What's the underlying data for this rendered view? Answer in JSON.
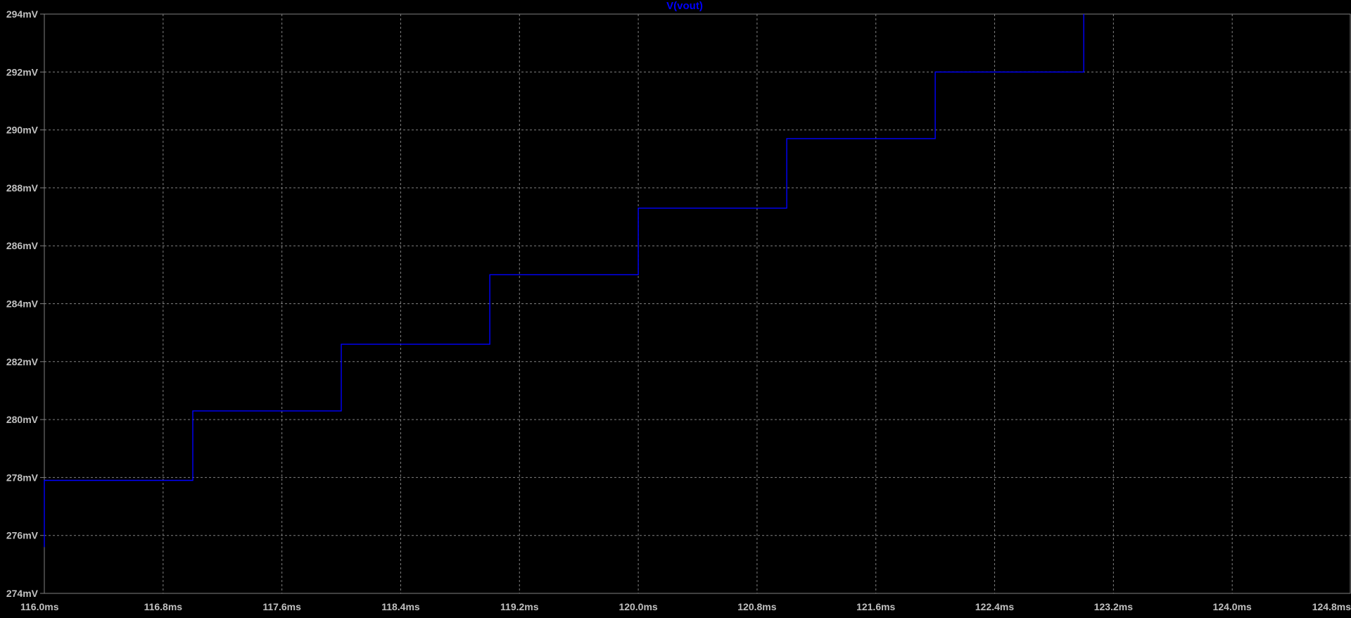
{
  "title": "V(vout)",
  "colors": {
    "background": "#000000",
    "trace": "#0000FF",
    "title": "#0000FF",
    "axis": "#808080",
    "grid": "#808080",
    "tick_label": "#C0C0C0"
  },
  "chart_data": {
    "type": "line",
    "title": "V(vout)",
    "xlabel": "",
    "ylabel": "",
    "xlim": [
      116.0,
      124.8
    ],
    "ylim": [
      274,
      294
    ],
    "x_unit": "ms",
    "y_unit": "mV",
    "grid": true,
    "x_ticks": [
      "116.0ms",
      "116.8ms",
      "117.6ms",
      "118.4ms",
      "119.2ms",
      "120.0ms",
      "120.8ms",
      "121.6ms",
      "122.4ms",
      "123.2ms",
      "124.0ms",
      "124.8ms"
    ],
    "y_ticks": [
      "294mV",
      "292mV",
      "290mV",
      "288mV",
      "286mV",
      "284mV",
      "282mV",
      "280mV",
      "278mV",
      "276mV",
      "274mV"
    ],
    "series": [
      {
        "points": [
          [
            116.0,
            275.6
          ],
          [
            116.0,
            277.9
          ],
          [
            117.0,
            277.9
          ],
          [
            117.0,
            280.3
          ],
          [
            118.0,
            280.3
          ],
          [
            118.0,
            282.6
          ],
          [
            119.0,
            282.6
          ],
          [
            119.0,
            285.0
          ],
          [
            120.0,
            285.0
          ],
          [
            120.0,
            287.3
          ],
          [
            121.0,
            287.3
          ],
          [
            121.0,
            289.7
          ],
          [
            122.0,
            289.7
          ],
          [
            122.0,
            292.0
          ],
          [
            123.0,
            292.0
          ],
          [
            123.0,
            294.0
          ]
        ]
      }
    ]
  }
}
